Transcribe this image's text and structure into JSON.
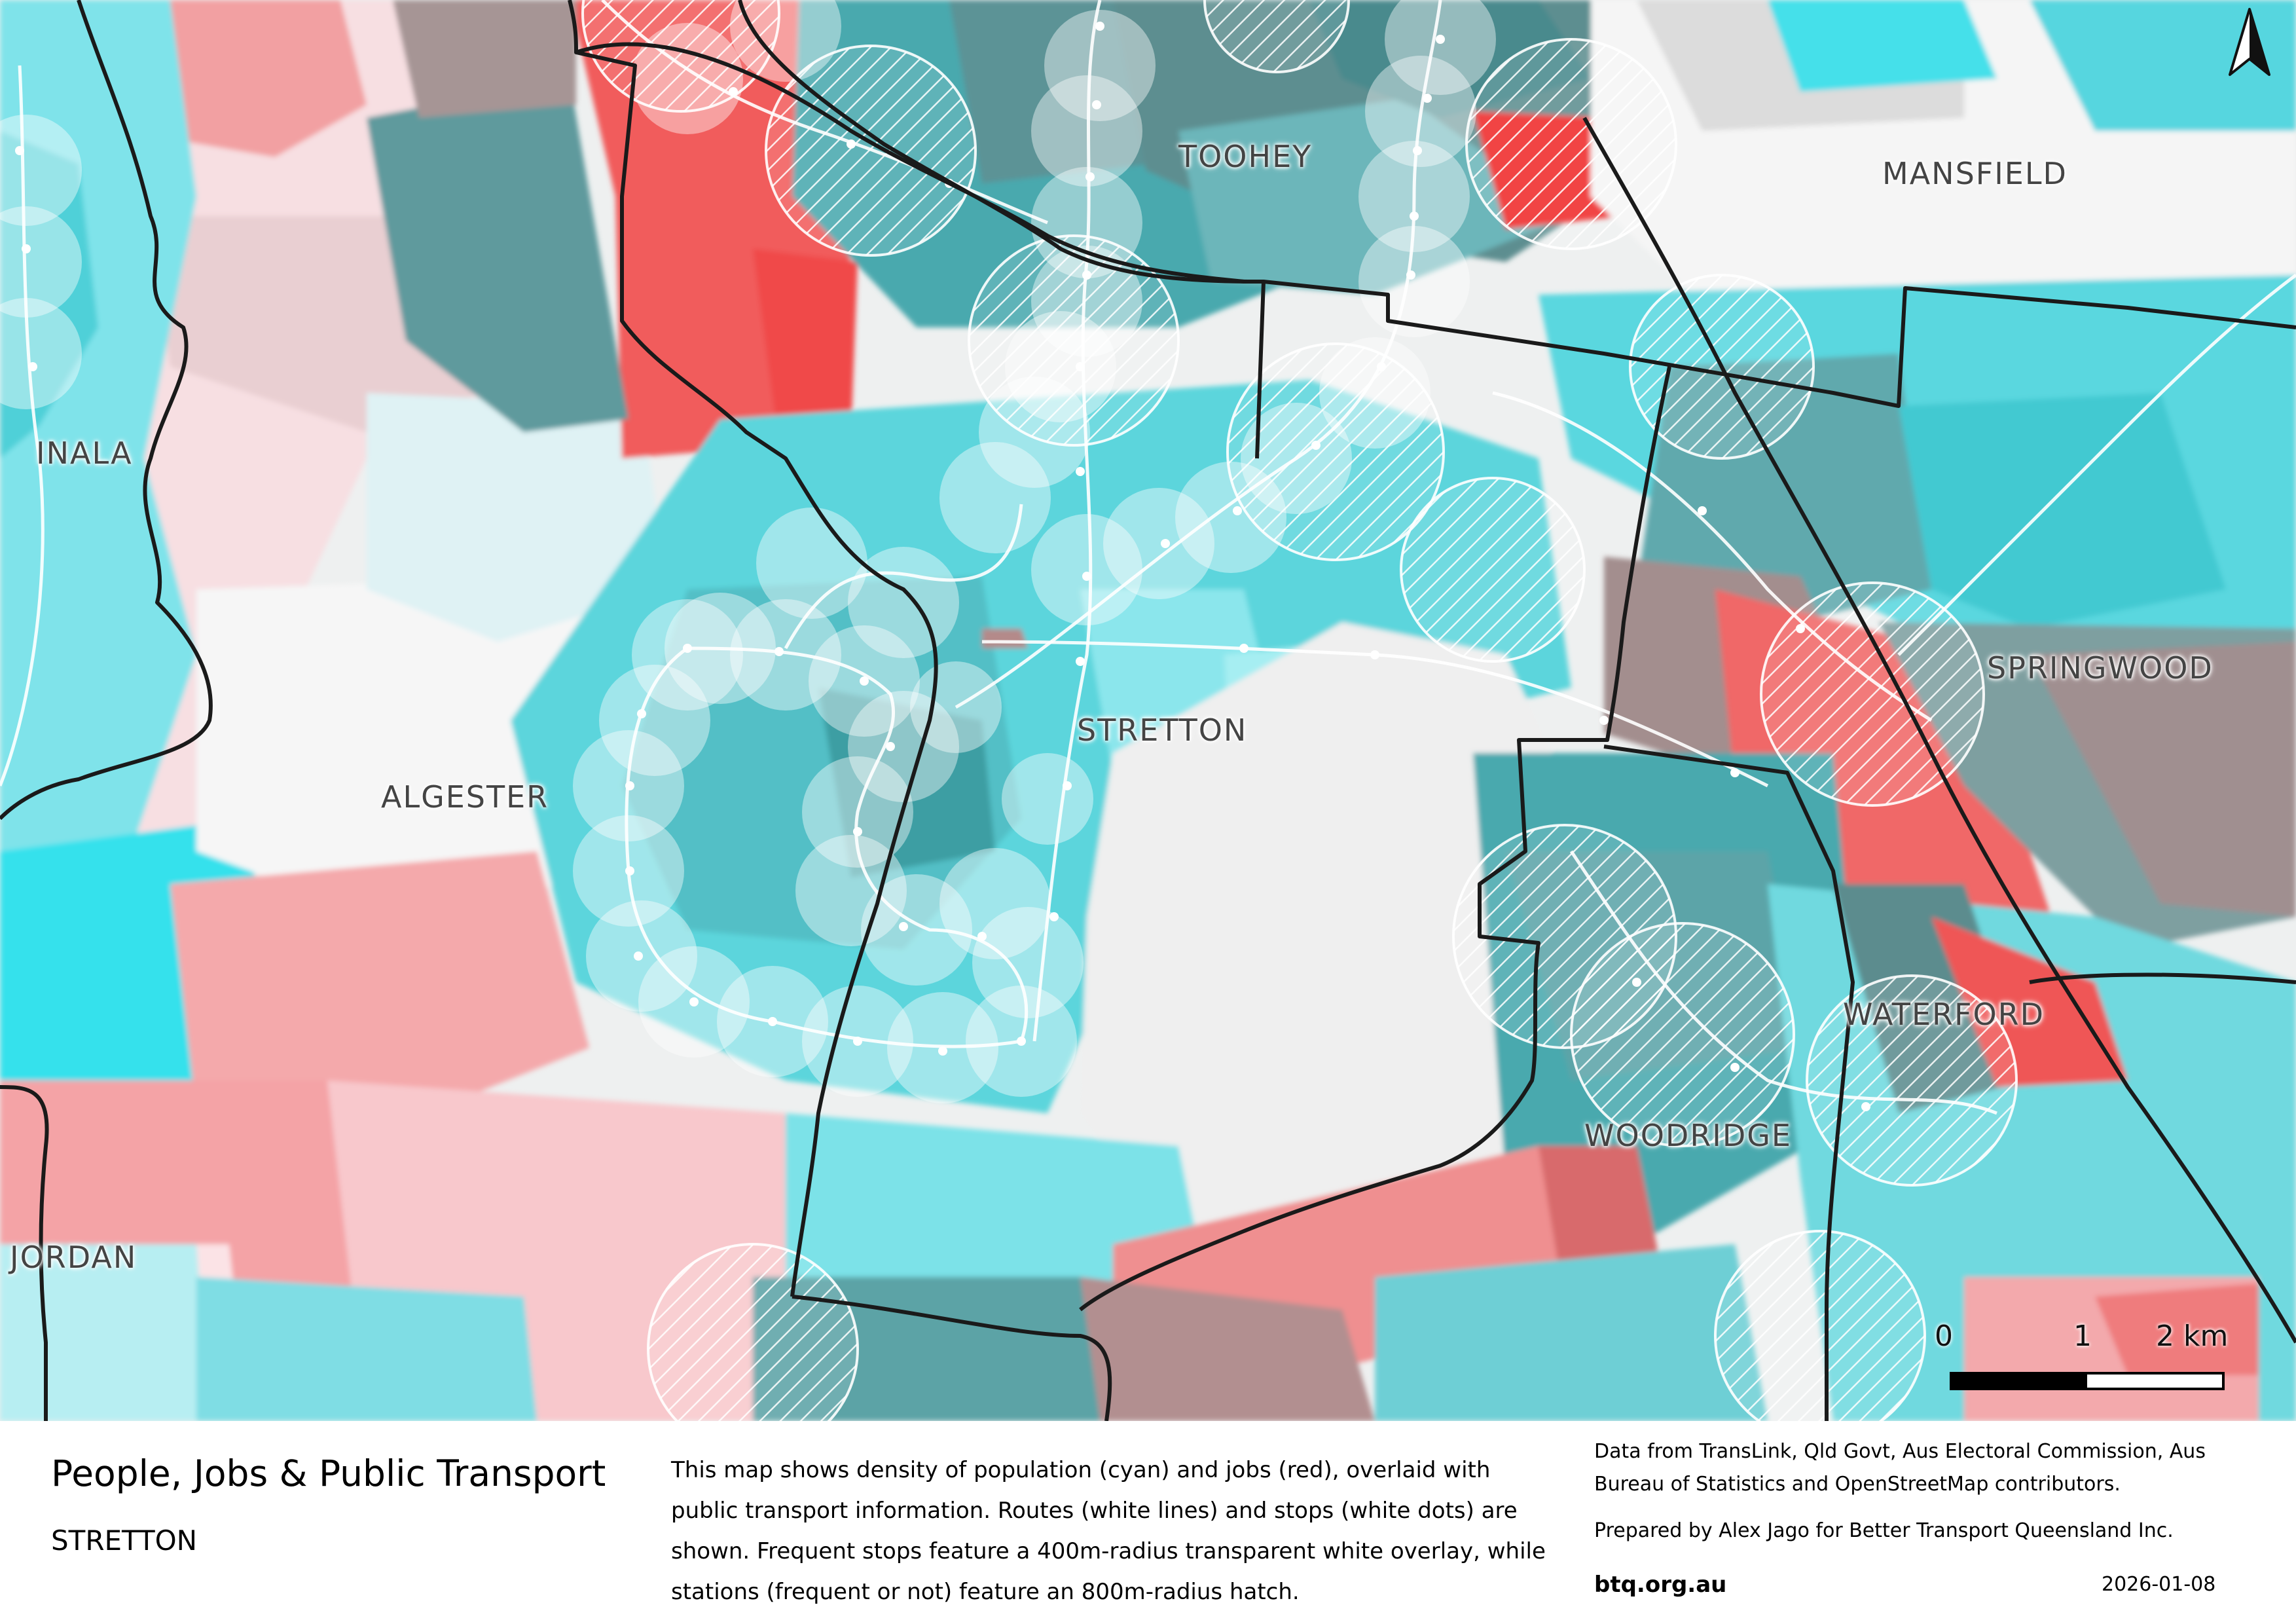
{
  "map": {
    "suburbs": [
      {
        "id": "toohey",
        "label": "TOOHEY"
      },
      {
        "id": "mansfield",
        "label": "MANSFIELD"
      },
      {
        "id": "inala",
        "label": "INALA"
      },
      {
        "id": "springwood",
        "label": "SPRINGWOOD"
      },
      {
        "id": "stretton",
        "label": "STRETTON"
      },
      {
        "id": "algester",
        "label": "ALGESTER"
      },
      {
        "id": "waterford",
        "label": "WATERFORD"
      },
      {
        "id": "woodridge",
        "label": "WOODRIDGE"
      },
      {
        "id": "jordan",
        "label": "JORDAN"
      }
    ],
    "north_arrow": "north-arrow-icon",
    "scale": {
      "labels": [
        "0",
        "1",
        "2 km"
      ]
    },
    "colors": {
      "population": "#33dde8",
      "jobs": "#f05a5a",
      "mixed": "#5f9ea0",
      "frequent_stop_overlay": "#ffffff",
      "boundary": "#1a1a1a"
    }
  },
  "legend": {
    "title": "People, Jobs & Public Transport",
    "subtitle": "STRETTON",
    "description": "This map shows density of population (cyan) and jobs (red), overlaid with public transport information. Routes (white lines) and stops (white dots) are shown. Frequent stops feature a 400m-radius transparent white overlay, while stations (frequent or not) feature an 800m-radius hatch.",
    "credits": "Data from TransLink,  Qld Govt,  Aus Electoral Commission, Aus Bureau of Statistics and OpenStreetMap contributors.",
    "prepared_by": "Prepared by Alex Jago for Better Transport Queensland Inc.",
    "website": "btq.org.au",
    "date": "2026-01-08"
  }
}
